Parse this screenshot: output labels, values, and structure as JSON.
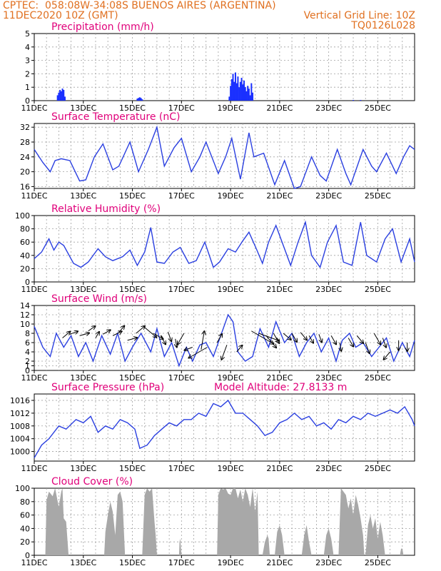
{
  "header": {
    "source": "CPTEC:",
    "location": "058:08W-34:08S  BUENOS AIRES (ARGENTINA)",
    "run": "11DEC2020 10Z (GMT)",
    "grid_note": "Vertical Grid Line: 10Z",
    "model_code": "TQ0126L028"
  },
  "colors": {
    "header": "#e07020",
    "title": "#e0007a",
    "line": "#2a3fe0",
    "precip": "#1a30ff",
    "cloud": "#a8a8a8",
    "grid": "#a0a0a0"
  },
  "x_axis": {
    "ticks": [
      "11DEC",
      "13DEC",
      "15DEC",
      "17DEC",
      "19DEC",
      "21DEC",
      "23DEC",
      "25DEC"
    ],
    "range_days": [
      0,
      15.5
    ]
  },
  "chart_data": [
    {
      "type": "bar",
      "title": "Precipitation (mm/h)",
      "ylim": [
        0,
        5
      ],
      "yticks": [
        "0",
        "1",
        "2",
        "3",
        "4",
        "5"
      ],
      "x": [
        0.95,
        1.0,
        1.05,
        1.1,
        1.15,
        1.2,
        1.25,
        4.2,
        4.25,
        4.3,
        4.35,
        4.4,
        7.95,
        8.0,
        8.05,
        8.1,
        8.15,
        8.2,
        8.25,
        8.3,
        8.35,
        8.4,
        8.45,
        8.5,
        8.55,
        8.6,
        8.65,
        8.7,
        8.75,
        8.8,
        8.85,
        8.9,
        13.0,
        13.3
      ],
      "values": [
        0.4,
        0.6,
        0.8,
        0.7,
        0.9,
        0.8,
        0.3,
        0.15,
        0.2,
        0.25,
        0.2,
        0.1,
        0.3,
        1.1,
        1.6,
        2.0,
        1.4,
        2.1,
        1.3,
        1.8,
        1.0,
        1.4,
        1.7,
        1.2,
        1.5,
        1.0,
        0.7,
        1.1,
        0.9,
        0.4,
        1.3,
        0.6,
        0.05,
        0.05
      ]
    },
    {
      "type": "line",
      "title": "Surface Temperature (nC)",
      "ylim": [
        15.5,
        33
      ],
      "yticks": [
        "16",
        "20",
        "24",
        "28",
        "32"
      ],
      "x": [
        0,
        0.35,
        0.65,
        0.85,
        1.1,
        1.45,
        1.85,
        2.1,
        2.45,
        2.8,
        3.2,
        3.45,
        3.9,
        4.25,
        4.65,
        5.0,
        5.3,
        5.7,
        6.0,
        6.4,
        6.75,
        7.0,
        7.5,
        7.8,
        8.05,
        8.4,
        8.75,
        8.95,
        9.35,
        9.8,
        10.2,
        10.6,
        10.85,
        11.3,
        11.65,
        11.9,
        12.35,
        12.7,
        12.9,
        13.4,
        13.75,
        13.95,
        14.35,
        14.75,
        15.05,
        15.3,
        15.5
      ],
      "values": [
        26,
        22.5,
        20,
        23,
        23.5,
        23,
        17.5,
        17.8,
        24,
        27.5,
        20.5,
        21.5,
        28,
        20,
        26,
        32,
        21.5,
        26.5,
        29,
        20,
        24,
        28,
        19.5,
        24,
        29,
        18,
        30.5,
        24,
        25,
        16.5,
        23,
        15.5,
        16,
        24,
        19,
        17.5,
        26,
        19.5,
        16.5,
        26,
        21.5,
        20,
        25,
        19.5,
        24,
        27,
        26
      ]
    },
    {
      "type": "line",
      "title": "Relative Humidity (%)",
      "ylim": [
        0,
        100
      ],
      "yticks": [
        "0",
        "20",
        "40",
        "60",
        "80",
        "100"
      ],
      "x": [
        0,
        0.3,
        0.6,
        0.8,
        1.0,
        1.2,
        1.6,
        1.9,
        2.2,
        2.6,
        2.9,
        3.2,
        3.6,
        3.9,
        4.2,
        4.5,
        4.75,
        5.0,
        5.3,
        5.65,
        5.95,
        6.3,
        6.6,
        6.95,
        7.3,
        7.55,
        7.9,
        8.2,
        8.5,
        8.75,
        9.05,
        9.3,
        9.55,
        9.85,
        10.15,
        10.45,
        10.75,
        11.05,
        11.3,
        11.65,
        11.95,
        12.3,
        12.6,
        12.95,
        13.3,
        13.55,
        13.95,
        14.3,
        14.6,
        14.95,
        15.3,
        15.5
      ],
      "values": [
        35,
        45,
        65,
        48,
        60,
        55,
        28,
        22,
        30,
        50,
        38,
        32,
        38,
        48,
        25,
        45,
        82,
        30,
        28,
        45,
        52,
        28,
        32,
        60,
        22,
        30,
        50,
        45,
        62,
        75,
        50,
        28,
        60,
        85,
        55,
        25,
        60,
        90,
        40,
        22,
        60,
        85,
        30,
        25,
        90,
        40,
        30,
        65,
        80,
        30,
        65,
        30
      ]
    },
    {
      "type": "line",
      "title": "Surface Wind (m/s)",
      "ylim": [
        0,
        14
      ],
      "yticks": [
        "0",
        "1",
        "2",
        "4",
        "6",
        "8",
        "10",
        "12",
        "14"
      ],
      "x": [
        0,
        0.35,
        0.65,
        0.9,
        1.2,
        1.5,
        1.8,
        2.1,
        2.4,
        2.75,
        3.1,
        3.4,
        3.7,
        4.0,
        4.35,
        4.75,
        5.0,
        5.3,
        5.6,
        5.9,
        6.2,
        6.45,
        6.75,
        7.0,
        7.3,
        7.6,
        7.9,
        8.1,
        8.3,
        8.6,
        8.9,
        9.2,
        9.55,
        9.85,
        10.2,
        10.5,
        10.8,
        11.1,
        11.4,
        11.7,
        12.0,
        12.3,
        12.55,
        12.85,
        13.1,
        13.4,
        13.75,
        14.05,
        14.35,
        14.65,
        15.0,
        15.3,
        15.5
      ],
      "values": [
        9.5,
        5,
        3,
        8,
        5,
        7.5,
        3,
        6,
        2,
        7.5,
        3.5,
        8,
        2,
        5,
        8,
        4,
        9,
        3,
        6,
        1,
        5,
        2,
        5.5,
        6,
        3,
        7.5,
        12,
        10.5,
        4,
        2,
        3,
        9,
        5,
        10.5,
        6,
        8,
        3,
        6,
        8,
        4,
        7,
        2,
        6.5,
        8,
        5,
        6,
        3,
        5,
        7,
        2,
        6,
        3,
        6.5
      ]
    },
    {
      "type": "line",
      "title": "Surface Pressure (hPa)",
      "subtitle": "Model Altitude: 27.8133 m",
      "ylim": [
        997,
        1018
      ],
      "yticks": [
        "1000",
        "1004",
        "1008",
        "1012",
        "1016"
      ],
      "x": [
        0,
        0.3,
        0.6,
        1.0,
        1.3,
        1.7,
        2.0,
        2.3,
        2.6,
        2.9,
        3.2,
        3.5,
        3.8,
        4.1,
        4.3,
        4.6,
        4.9,
        5.2,
        5.5,
        5.8,
        6.1,
        6.4,
        6.7,
        7.0,
        7.3,
        7.6,
        7.9,
        8.2,
        8.5,
        8.8,
        9.1,
        9.4,
        9.7,
        10.0,
        10.3,
        10.6,
        10.9,
        11.2,
        11.5,
        11.8,
        12.1,
        12.4,
        12.7,
        13.0,
        13.3,
        13.6,
        13.9,
        14.2,
        14.5,
        14.8,
        15.1,
        15.4,
        15.5
      ],
      "values": [
        998,
        1002,
        1004,
        1008,
        1007,
        1010,
        1009,
        1011,
        1006,
        1008,
        1007,
        1010,
        1009,
        1007,
        1001,
        1002,
        1005,
        1007,
        1009,
        1008,
        1010,
        1010,
        1012,
        1011,
        1015,
        1014,
        1016,
        1012,
        1012,
        1010,
        1008,
        1005,
        1006,
        1009,
        1010,
        1012,
        1010,
        1011,
        1008,
        1009,
        1007,
        1010,
        1009,
        1011,
        1010,
        1012,
        1011,
        1012,
        1013,
        1012,
        1014,
        1010,
        1008
      ]
    },
    {
      "type": "area",
      "title": "Cloud Cover (%)",
      "ylim": [
        0,
        100
      ],
      "yticks": [
        "0",
        "20",
        "40",
        "60",
        "80",
        "100"
      ],
      "x": [
        0,
        0.45,
        0.5,
        0.6,
        0.75,
        0.85,
        1.0,
        1.1,
        1.15,
        1.2,
        1.3,
        1.4,
        1.55,
        1.6,
        2.85,
        2.9,
        3.0,
        3.1,
        3.2,
        3.3,
        3.4,
        3.5,
        3.6,
        3.7,
        3.8,
        3.85,
        4.0,
        4.05,
        4.4,
        4.5,
        4.6,
        4.7,
        4.8,
        4.9,
        4.95,
        5.0,
        5.9,
        5.92,
        5.95,
        6.0,
        7.45,
        7.5,
        7.6,
        7.7,
        7.8,
        7.9,
        8.0,
        8.1,
        8.2,
        8.3,
        8.4,
        8.5,
        8.6,
        8.7,
        8.8,
        8.9,
        9.0,
        9.1,
        9.15,
        9.2,
        9.3,
        9.4,
        9.5,
        9.55,
        9.6,
        9.8,
        9.9,
        10.0,
        10.1,
        10.2,
        10.3,
        10.35,
        10.4,
        10.9,
        11.0,
        11.1,
        11.2,
        11.3,
        11.4,
        11.45,
        11.5,
        11.7,
        11.8,
        11.9,
        12.0,
        12.1,
        12.2,
        12.3,
        12.35,
        12.4,
        12.5,
        12.6,
        12.7,
        12.8,
        12.9,
        13.0,
        13.1,
        13.2,
        13.3,
        13.4,
        13.45,
        13.5,
        13.6,
        13.7,
        13.8,
        13.9,
        14.0,
        14.1,
        14.2,
        14.3,
        14.4,
        14.5,
        14.55,
        14.6,
        14.9,
        14.95,
        15.0,
        15.05,
        15.5
      ],
      "values": [
        0,
        0,
        82,
        95,
        88,
        100,
        72,
        95,
        100,
        55,
        50,
        0,
        0,
        0,
        0,
        35,
        60,
        80,
        65,
        30,
        90,
        95,
        80,
        0,
        0,
        0,
        0,
        0,
        0,
        90,
        100,
        95,
        100,
        50,
        30,
        0,
        0,
        20,
        25,
        0,
        0,
        90,
        100,
        98,
        100,
        92,
        90,
        100,
        100,
        85,
        98,
        80,
        100,
        90,
        72,
        100,
        65,
        95,
        0,
        0,
        0,
        20,
        30,
        25,
        0,
        0,
        35,
        45,
        30,
        0,
        0,
        0,
        0,
        0,
        30,
        45,
        20,
        0,
        0,
        0,
        0,
        0,
        0,
        30,
        40,
        25,
        0,
        0,
        0,
        0,
        100,
        95,
        90,
        70,
        85,
        60,
        90,
        75,
        55,
        30,
        0,
        0,
        45,
        60,
        40,
        55,
        25,
        50,
        30,
        0,
        0,
        0,
        0,
        0,
        0,
        10,
        10,
        0,
        0
      ]
    }
  ],
  "wind_arrows": [
    {
      "x": 1.15,
      "y": 7.0,
      "dir_deg": 40,
      "len": 14
    },
    {
      "x": 1.45,
      "y": 7.8,
      "dir_deg": 20,
      "len": 12
    },
    {
      "x": 1.85,
      "y": 7.5,
      "dir_deg": 15,
      "len": 14
    },
    {
      "x": 2.2,
      "y": 8.5,
      "dir_deg": 35,
      "len": 12
    },
    {
      "x": 2.5,
      "y": 7.0,
      "dir_deg": 60,
      "len": 10
    },
    {
      "x": 2.8,
      "y": 7.8,
      "dir_deg": 30,
      "len": 12
    },
    {
      "x": 3.2,
      "y": 7.5,
      "dir_deg": 25,
      "len": 14
    },
    {
      "x": 3.45,
      "y": 8.2,
      "dir_deg": 50,
      "len": 12
    },
    {
      "x": 3.8,
      "y": 6.5,
      "dir_deg": 15,
      "len": 14
    },
    {
      "x": 4.15,
      "y": 8.0,
      "dir_deg": 40,
      "len": 16
    },
    {
      "x": 4.45,
      "y": 9.5,
      "dir_deg": 320,
      "len": 24
    },
    {
      "x": 4.85,
      "y": 8.0,
      "dir_deg": 330,
      "len": 16
    },
    {
      "x": 5.15,
      "y": 7.5,
      "dir_deg": 300,
      "len": 14
    },
    {
      "x": 5.45,
      "y": 8.3,
      "dir_deg": 290,
      "len": 14
    },
    {
      "x": 5.75,
      "y": 6.8,
      "dir_deg": 280,
      "len": 12
    },
    {
      "x": 6.1,
      "y": 8.0,
      "dir_deg": 240,
      "len": 18
    },
    {
      "x": 6.45,
      "y": 5.0,
      "dir_deg": 200,
      "len": 12
    },
    {
      "x": 6.8,
      "y": 4.5,
      "dir_deg": 80,
      "len": 26
    },
    {
      "x": 7.05,
      "y": 5.0,
      "dir_deg": 210,
      "len": 30
    },
    {
      "x": 7.45,
      "y": 6.0,
      "dir_deg": 60,
      "len": 14
    },
    {
      "x": 7.85,
      "y": 5.5,
      "dir_deg": 250,
      "len": 22
    },
    {
      "x": 8.25,
      "y": 4.0,
      "dir_deg": 50,
      "len": 12
    },
    {
      "x": 8.85,
      "y": 8.5,
      "dir_deg": 330,
      "len": 36
    },
    {
      "x": 9.15,
      "y": 8.0,
      "dir_deg": 340,
      "len": 30
    },
    {
      "x": 9.45,
      "y": 7.5,
      "dir_deg": 310,
      "len": 22
    },
    {
      "x": 9.75,
      "y": 8.0,
      "dir_deg": 300,
      "len": 16
    },
    {
      "x": 10.15,
      "y": 8.0,
      "dir_deg": 320,
      "len": 14
    },
    {
      "x": 10.5,
      "y": 8.0,
      "dir_deg": 300,
      "len": 14
    },
    {
      "x": 10.85,
      "y": 8.2,
      "dir_deg": 310,
      "len": 14
    },
    {
      "x": 11.2,
      "y": 7.5,
      "dir_deg": 300,
      "len": 12
    },
    {
      "x": 11.6,
      "y": 7.8,
      "dir_deg": 290,
      "len": 12
    },
    {
      "x": 12.1,
      "y": 7.5,
      "dir_deg": 300,
      "len": 14
    },
    {
      "x": 12.45,
      "y": 6.0,
      "dir_deg": 280,
      "len": 12
    },
    {
      "x": 12.8,
      "y": 7.0,
      "dir_deg": 300,
      "len": 14
    },
    {
      "x": 13.15,
      "y": 7.5,
      "dir_deg": 310,
      "len": 14
    },
    {
      "x": 13.5,
      "y": 6.0,
      "dir_deg": 290,
      "len": 16
    },
    {
      "x": 13.85,
      "y": 8.0,
      "dir_deg": 300,
      "len": 18
    },
    {
      "x": 14.2,
      "y": 7.0,
      "dir_deg": 290,
      "len": 14
    },
    {
      "x": 14.5,
      "y": 4.0,
      "dir_deg": 230,
      "len": 14
    },
    {
      "x": 14.85,
      "y": 6.5,
      "dir_deg": 270,
      "len": 14
    },
    {
      "x": 15.2,
      "y": 6.0,
      "dir_deg": 270,
      "len": 12
    }
  ]
}
